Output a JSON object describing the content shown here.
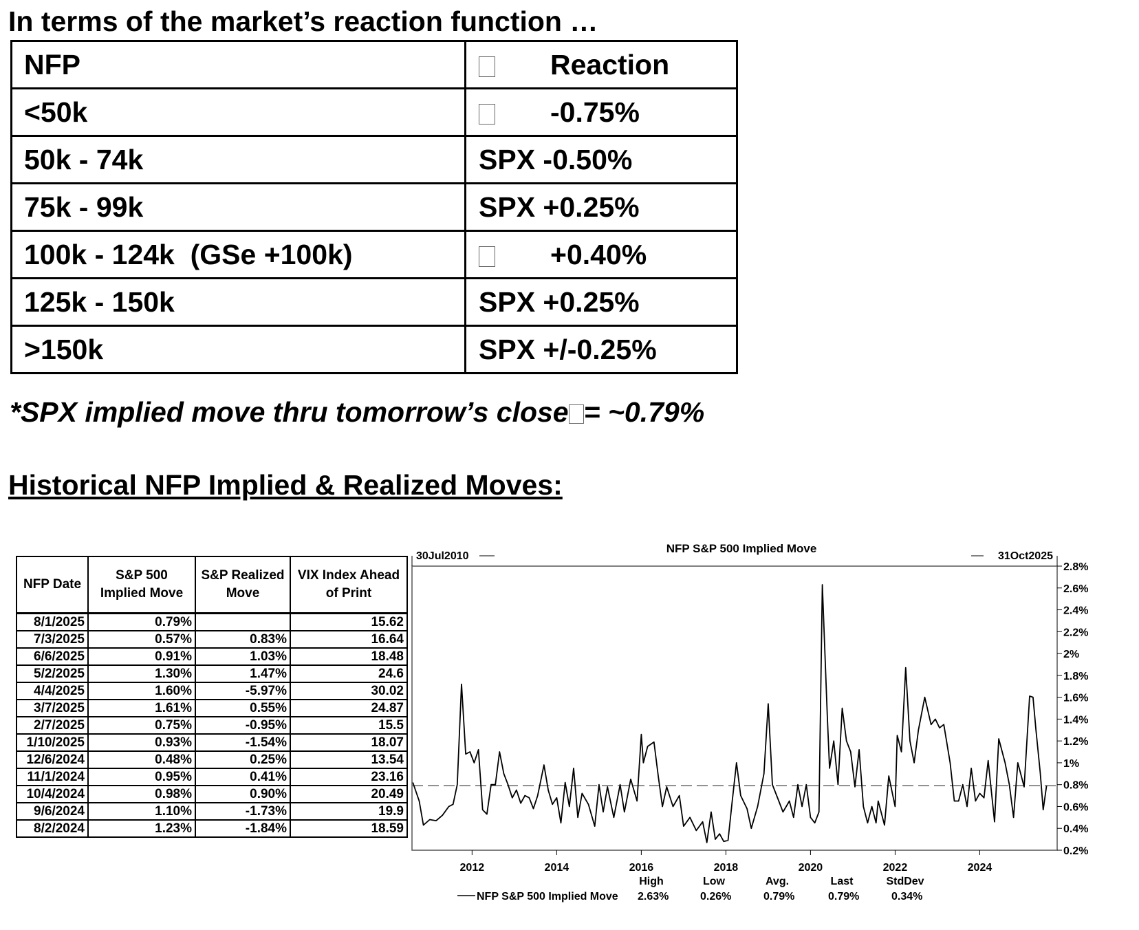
{
  "header": {
    "title": "In terms of the market’s reaction function …"
  },
  "reaction_table": {
    "columns": [
      "NFP",
      "Reaction"
    ],
    "rows": [
      [
        "<50k",
        "-0.75%"
      ],
      [
        "50k - 74k",
        "SPX -0.50%"
      ],
      [
        "75k - 99k",
        "SPX +0.25%"
      ],
      [
        "100k - 124k  (GSe +100k)",
        "+0.40%"
      ],
      [
        "125k - 150k",
        "SPX +0.25%"
      ],
      [
        ">150k",
        "SPX +/-0.25%"
      ]
    ]
  },
  "note": {
    "text": "*SPX implied move thru tomorrow’s close",
    "value": "= ~0.79%"
  },
  "section_title": "Historical NFP Implied & Realized Moves:",
  "history_table": {
    "columns": [
      "NFP Date",
      "S&P 500 Implied Move",
      "S&P Realized Move",
      "VIX Index Ahead of Print"
    ],
    "rows": [
      [
        "8/1/2025",
        "0.79%",
        "",
        "15.62"
      ],
      [
        "7/3/2025",
        "0.57%",
        "0.83%",
        "16.64"
      ],
      [
        "6/6/2025",
        "0.91%",
        "1.03%",
        "18.48"
      ],
      [
        "5/2/2025",
        "1.30%",
        "1.47%",
        "24.6"
      ],
      [
        "4/4/2025",
        "1.60%",
        "-5.97%",
        "30.02"
      ],
      [
        "3/7/2025",
        "1.61%",
        "0.55%",
        "24.87"
      ],
      [
        "2/7/2025",
        "0.75%",
        "-0.95%",
        "15.5"
      ],
      [
        "1/10/2025",
        "0.93%",
        "-1.54%",
        "18.07"
      ],
      [
        "12/6/2024",
        "0.48%",
        "0.25%",
        "13.54"
      ],
      [
        "11/1/2024",
        "0.95%",
        "0.41%",
        "23.16"
      ],
      [
        "10/4/2024",
        "0.98%",
        "0.90%",
        "20.49"
      ],
      [
        "9/6/2024",
        "1.10%",
        "-1.73%",
        "19.9"
      ],
      [
        "8/2/2024",
        "1.23%",
        "-1.84%",
        "18.59"
      ]
    ]
  },
  "chart_data": {
    "type": "line",
    "title": "NFP S&P 500 Implied Move",
    "start_label": "30Jul2010",
    "end_label": "31Oct2025",
    "x": [
      2010.6,
      2010.75,
      2010.85,
      2011.0,
      2011.15,
      2011.3,
      2011.45,
      2011.55,
      2011.65,
      2011.75,
      2011.85,
      2011.95,
      2012.05,
      2012.15,
      2012.25,
      2012.35,
      2012.45,
      2012.55,
      2012.65,
      2012.75,
      2012.85,
      2012.95,
      2013.05,
      2013.15,
      2013.25,
      2013.35,
      2013.45,
      2013.55,
      2013.7,
      2013.8,
      2013.9,
      2014.0,
      2014.1,
      2014.2,
      2014.3,
      2014.4,
      2014.5,
      2014.6,
      2014.75,
      2014.9,
      2015.0,
      2015.1,
      2015.2,
      2015.35,
      2015.5,
      2015.6,
      2015.75,
      2015.9,
      2016.0,
      2016.05,
      2016.15,
      2016.3,
      2016.4,
      2016.5,
      2016.6,
      2016.75,
      2016.9,
      2017.0,
      2017.15,
      2017.3,
      2017.45,
      2017.55,
      2017.65,
      2017.75,
      2017.85,
      2017.95,
      2018.05,
      2018.15,
      2018.25,
      2018.35,
      2018.5,
      2018.6,
      2018.75,
      2018.9,
      2019.0,
      2019.1,
      2019.25,
      2019.35,
      2019.5,
      2019.6,
      2019.7,
      2019.8,
      2019.9,
      2020.0,
      2020.1,
      2020.2,
      2020.28,
      2020.4,
      2020.45,
      2020.55,
      2020.65,
      2020.75,
      2020.85,
      2020.95,
      2021.05,
      2021.15,
      2021.25,
      2021.35,
      2021.45,
      2021.55,
      2021.6,
      2021.75,
      2021.85,
      2022.0,
      2022.05,
      2022.15,
      2022.25,
      2022.35,
      2022.45,
      2022.55,
      2022.7,
      2022.85,
      2022.95,
      2023.05,
      2023.15,
      2023.3,
      2023.4,
      2023.5,
      2023.6,
      2023.7,
      2023.8,
      2023.9,
      2024.0,
      2024.1,
      2024.2,
      2024.35,
      2024.45,
      2024.6,
      2024.7,
      2024.8,
      2024.9,
      2025.05,
      2025.18,
      2025.26,
      2025.33,
      2025.43,
      2025.5,
      2025.58
    ],
    "series": [
      {
        "name": "NFP S&P 500 Implied Move",
        "color": "#000000",
        "values": [
          0.82,
          0.65,
          0.43,
          0.48,
          0.47,
          0.52,
          0.6,
          0.62,
          0.8,
          1.72,
          1.08,
          1.1,
          1.0,
          1.12,
          0.57,
          0.53,
          0.8,
          0.8,
          1.1,
          0.9,
          0.8,
          0.68,
          0.75,
          0.63,
          0.7,
          0.68,
          0.58,
          0.7,
          0.98,
          0.75,
          0.62,
          0.68,
          0.45,
          0.82,
          0.6,
          0.95,
          0.5,
          0.72,
          0.62,
          0.42,
          0.8,
          0.55,
          0.78,
          0.5,
          0.8,
          0.55,
          0.85,
          0.65,
          1.26,
          1.0,
          1.15,
          1.19,
          0.88,
          0.6,
          0.78,
          0.6,
          0.7,
          0.42,
          0.5,
          0.38,
          0.46,
          0.27,
          0.55,
          0.3,
          0.35,
          0.28,
          0.29,
          0.65,
          1.0,
          0.7,
          0.58,
          0.4,
          0.6,
          0.9,
          1.54,
          0.8,
          0.65,
          0.55,
          0.65,
          0.5,
          0.8,
          0.6,
          0.8,
          0.5,
          0.45,
          0.55,
          2.63,
          1.4,
          0.95,
          1.2,
          0.8,
          1.5,
          1.2,
          1.1,
          0.78,
          1.12,
          0.6,
          0.45,
          0.6,
          0.45,
          0.65,
          0.43,
          0.88,
          0.6,
          1.25,
          1.1,
          1.87,
          1.2,
          1.0,
          1.3,
          1.6,
          1.35,
          1.4,
          1.32,
          1.35,
          1.0,
          0.65,
          0.65,
          0.8,
          0.6,
          0.95,
          0.65,
          0.72,
          0.68,
          1.02,
          0.46,
          1.22,
          1.0,
          0.8,
          0.5,
          1.0,
          0.78,
          1.61,
          1.6,
          1.3,
          0.91,
          0.57,
          0.79
        ]
      }
    ],
    "xlim": [
      2010.58,
      2025.83
    ],
    "xticks": [
      2012,
      2014,
      2016,
      2018,
      2020,
      2022,
      2024
    ],
    "ylim": [
      0.2,
      2.8
    ],
    "yticks": [
      {
        "value": 0.2,
        "label": "0.2%"
      },
      {
        "value": 0.4,
        "label": "0.4%"
      },
      {
        "value": 0.6,
        "label": "0.6%"
      },
      {
        "value": 0.8,
        "label": "0.8%"
      },
      {
        "value": 1,
        "label": "1%"
      },
      {
        "value": 1.2,
        "label": "1.2%"
      },
      {
        "value": 1.4,
        "label": "1.4%"
      },
      {
        "value": 1.6,
        "label": "1.6%"
      },
      {
        "value": 1.8,
        "label": "1.8%"
      },
      {
        "value": 2,
        "label": "2%"
      },
      {
        "value": 2.2,
        "label": "2.2%"
      },
      {
        "value": 2.4,
        "label": "2.4%"
      },
      {
        "value": 2.6,
        "label": "2.6%"
      },
      {
        "value": 2.8,
        "label": "2.8%"
      }
    ],
    "reference_line": 0.79,
    "stats": [
      {
        "label": "High",
        "value": "2.63%"
      },
      {
        "label": "Low",
        "value": "0.26%"
      },
      {
        "label": "Avg.",
        "value": "0.79%"
      },
      {
        "label": "Last",
        "value": "0.79%"
      },
      {
        "label": "StdDev",
        "value": "0.34%"
      }
    ]
  }
}
